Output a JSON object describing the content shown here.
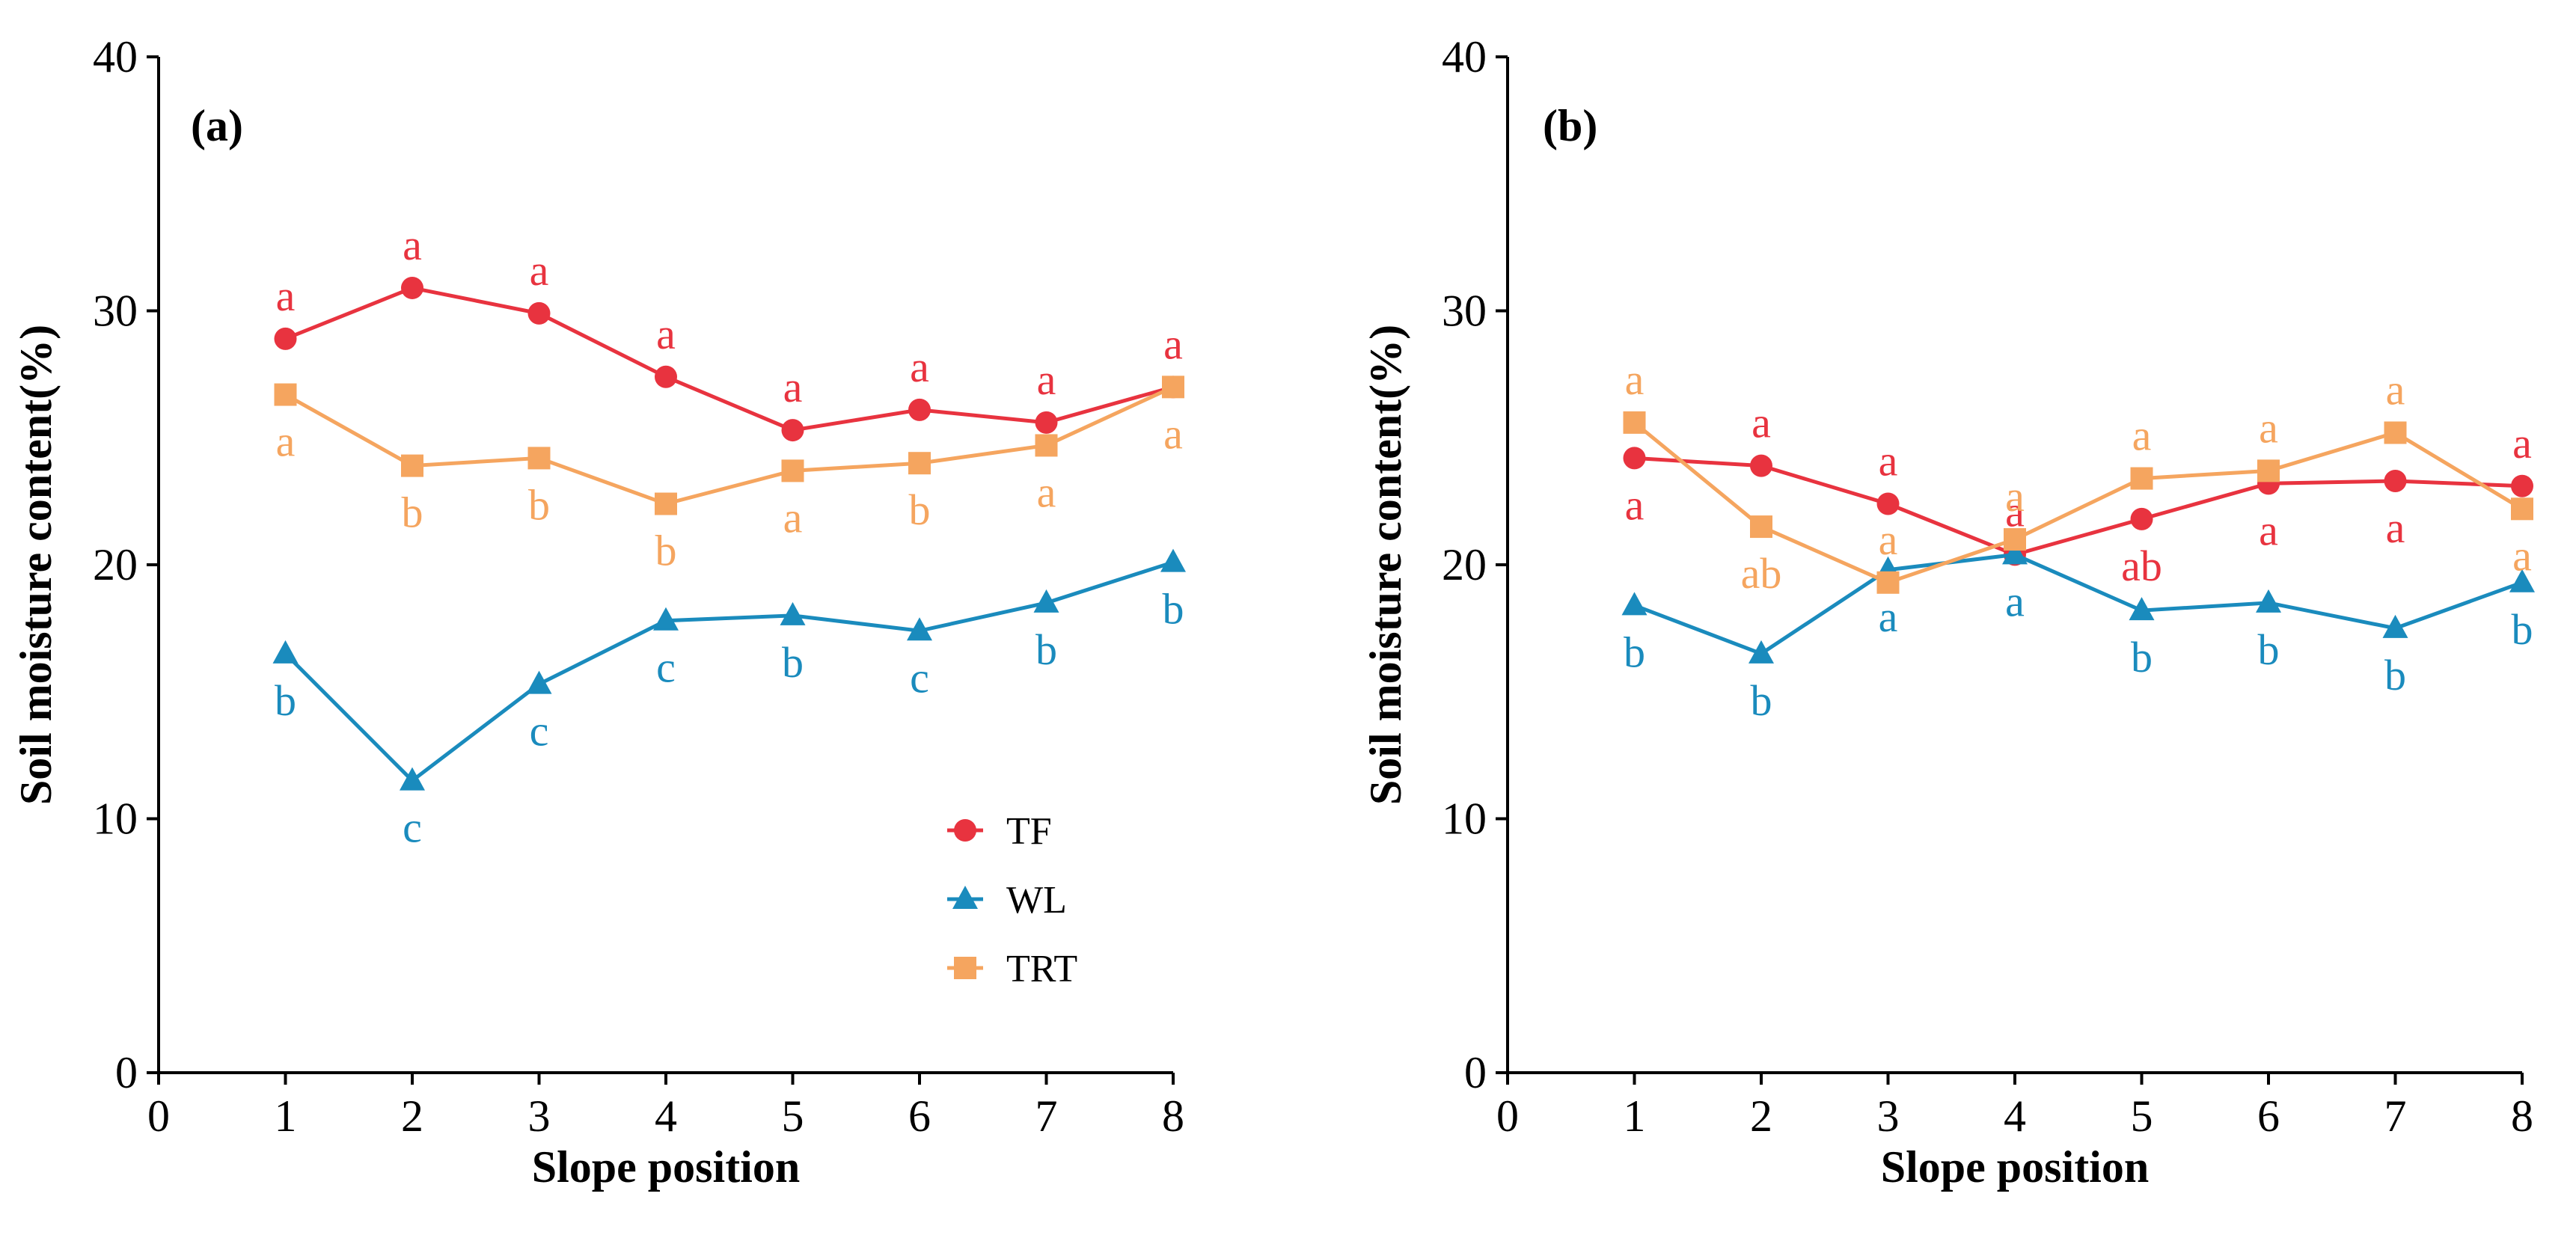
{
  "figure": {
    "legend_position": "bottom-right of panel (a)"
  },
  "colors": {
    "TF": "#e8333f",
    "WL": "#1a8bbd",
    "TRT": "#f5a55f"
  },
  "chart_data": [
    {
      "type": "line",
      "panel": "(a)",
      "xlabel": "Slope position",
      "ylabel": "Soil moisture content(%)",
      "xlim": [
        0,
        8
      ],
      "ylim": [
        0,
        40
      ],
      "xticks": [
        0,
        1,
        2,
        3,
        4,
        5,
        6,
        7,
        8
      ],
      "yticks": [
        0,
        10,
        20,
        30,
        40
      ],
      "grid": false,
      "legend": true,
      "x": [
        1,
        2,
        3,
        4,
        5,
        6,
        7,
        8
      ],
      "series": [
        {
          "name": "TF",
          "marker": "circle",
          "values": [
            28.9,
            30.9,
            29.9,
            27.4,
            25.3,
            26.1,
            25.6,
            27.0
          ],
          "labels": [
            "a",
            "a",
            "a",
            "a",
            "a",
            "a",
            "a",
            "a"
          ],
          "label_pos": [
            "above",
            "above",
            "above",
            "above",
            "above",
            "above",
            "above",
            "above"
          ]
        },
        {
          "name": "WL",
          "marker": "triangle",
          "values": [
            16.5,
            11.5,
            15.3,
            17.8,
            18.0,
            17.4,
            18.5,
            20.1
          ],
          "labels": [
            "b",
            "c",
            "c",
            "c",
            "b",
            "c",
            "b",
            "b"
          ],
          "label_pos": [
            "below",
            "below",
            "below",
            "below",
            "below",
            "below",
            "below",
            "below"
          ]
        },
        {
          "name": "TRT",
          "marker": "square",
          "values": [
            26.7,
            23.9,
            24.2,
            22.4,
            23.7,
            24.0,
            24.7,
            27.0
          ],
          "labels": [
            "a",
            "b",
            "b",
            "b",
            "a",
            "b",
            "a",
            "a"
          ],
          "label_pos": [
            "below",
            "below",
            "below",
            "below",
            "below",
            "below",
            "below",
            "below"
          ]
        }
      ]
    },
    {
      "type": "line",
      "panel": "(b)",
      "xlabel": "Slope position",
      "ylabel": "Soil moisture content(%)",
      "xlim": [
        0,
        8
      ],
      "ylim": [
        0,
        40
      ],
      "xticks": [
        0,
        1,
        2,
        3,
        4,
        5,
        6,
        7,
        8
      ],
      "yticks": [
        0,
        10,
        20,
        30,
        40
      ],
      "grid": false,
      "legend": false,
      "x": [
        1,
        2,
        3,
        4,
        5,
        6,
        7,
        8
      ],
      "series": [
        {
          "name": "TF",
          "marker": "circle",
          "values": [
            24.2,
            23.9,
            22.4,
            20.4,
            21.8,
            23.2,
            23.3,
            23.1
          ],
          "labels": [
            "a",
            "a",
            "a",
            "a",
            "ab",
            "a",
            "a",
            "a"
          ],
          "label_pos": [
            "below",
            "above",
            "above",
            "above",
            "below",
            "below",
            "below",
            "above"
          ]
        },
        {
          "name": "WL",
          "marker": "triangle",
          "values": [
            18.4,
            16.5,
            19.8,
            20.4,
            18.2,
            18.5,
            17.5,
            19.3
          ],
          "labels": [
            "b",
            "b",
            "a",
            "a",
            "b",
            "b",
            "b",
            "b"
          ],
          "label_pos": [
            "below",
            "below",
            "below",
            "below",
            "below",
            "below",
            "below",
            "below"
          ]
        },
        {
          "name": "TRT",
          "marker": "square",
          "values": [
            25.6,
            21.5,
            19.3,
            21.0,
            23.4,
            23.7,
            25.2,
            22.2
          ],
          "labels": [
            "a",
            "ab",
            "a",
            "a",
            "a",
            "a",
            "a",
            "a"
          ],
          "label_pos": [
            "above",
            "below",
            "above",
            "above",
            "above",
            "above",
            "above",
            "below"
          ]
        }
      ]
    }
  ]
}
